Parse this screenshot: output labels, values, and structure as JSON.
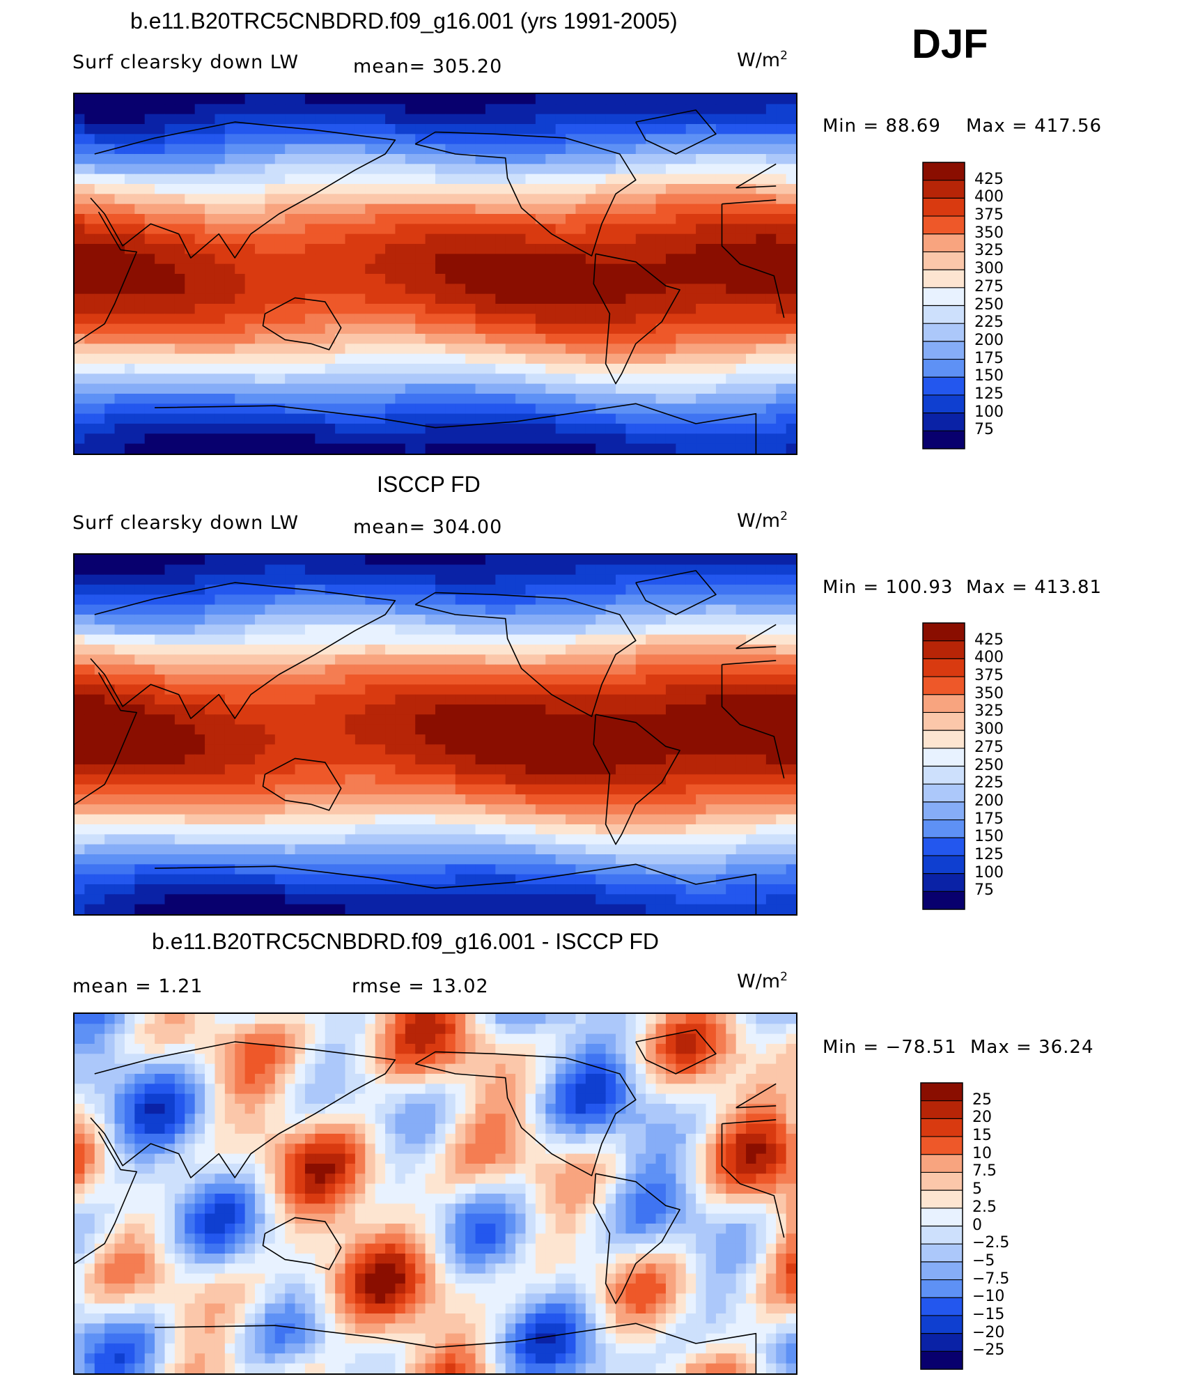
{
  "season": "DJF",
  "colors": {
    "diverging_scale": [
      "#08006e",
      "#0a22a6",
      "#0f3fd0",
      "#2357ee",
      "#3f74f2",
      "#5e91f5",
      "#86adf7",
      "#acc8fa",
      "#cde0fc",
      "#e8f2ff",
      "#fde5d1",
      "#fbc7aa",
      "#f8a47f",
      "#f47d52",
      "#ee5829",
      "#d93a10",
      "#b72507",
      "#8a0e00"
    ]
  },
  "chart_data": [
    {
      "type": "heatmap",
      "title": "b.e11.B20TRC5CNBDRD.f09_g16.001 (yrs 1991-2005)",
      "variable": "Surf clearsky down LW",
      "mean_text": "mean= 305.20",
      "unit": "W/m",
      "unit_sup": "2",
      "min_text": "Min =  88.69",
      "max_text": "Max = 417.56",
      "min": 88.69,
      "max": 417.56,
      "mean": 305.2,
      "colorbar_levels": [
        "425",
        "400",
        "375",
        "350",
        "325",
        "300",
        "275",
        "250",
        "225",
        "200",
        "175",
        "150",
        "125",
        "100",
        "75"
      ]
    },
    {
      "type": "heatmap",
      "title": "ISCCP FD",
      "variable": "Surf clearsky down LW",
      "mean_text": "mean= 304.00",
      "unit": "W/m",
      "unit_sup": "2",
      "min_text": "Min = 100.93",
      "max_text": "Max = 413.81",
      "min": 100.93,
      "max": 413.81,
      "mean": 304.0,
      "colorbar_levels": [
        "425",
        "400",
        "375",
        "350",
        "325",
        "300",
        "275",
        "250",
        "225",
        "200",
        "175",
        "150",
        "125",
        "100",
        "75"
      ]
    },
    {
      "type": "heatmap",
      "title": "b.e11.B20TRC5CNBDRD.f09_g16.001 - ISCCP FD",
      "mean_text": "mean =     1.21",
      "rmse_text": "rmse =    13.02",
      "unit": "W/m",
      "unit_sup": "2",
      "min_text": "Min = −78.51",
      "max_text": "Max =   36.24",
      "min": -78.51,
      "max": 36.24,
      "mean": 1.21,
      "rmse": 13.02,
      "colorbar_levels": [
        "25",
        "20",
        "15",
        "10",
        "7.5",
        "5",
        "2.5",
        "0",
        "−2.5",
        "−5",
        "−7.5",
        "−10",
        "−15",
        "−20",
        "−25"
      ]
    }
  ]
}
